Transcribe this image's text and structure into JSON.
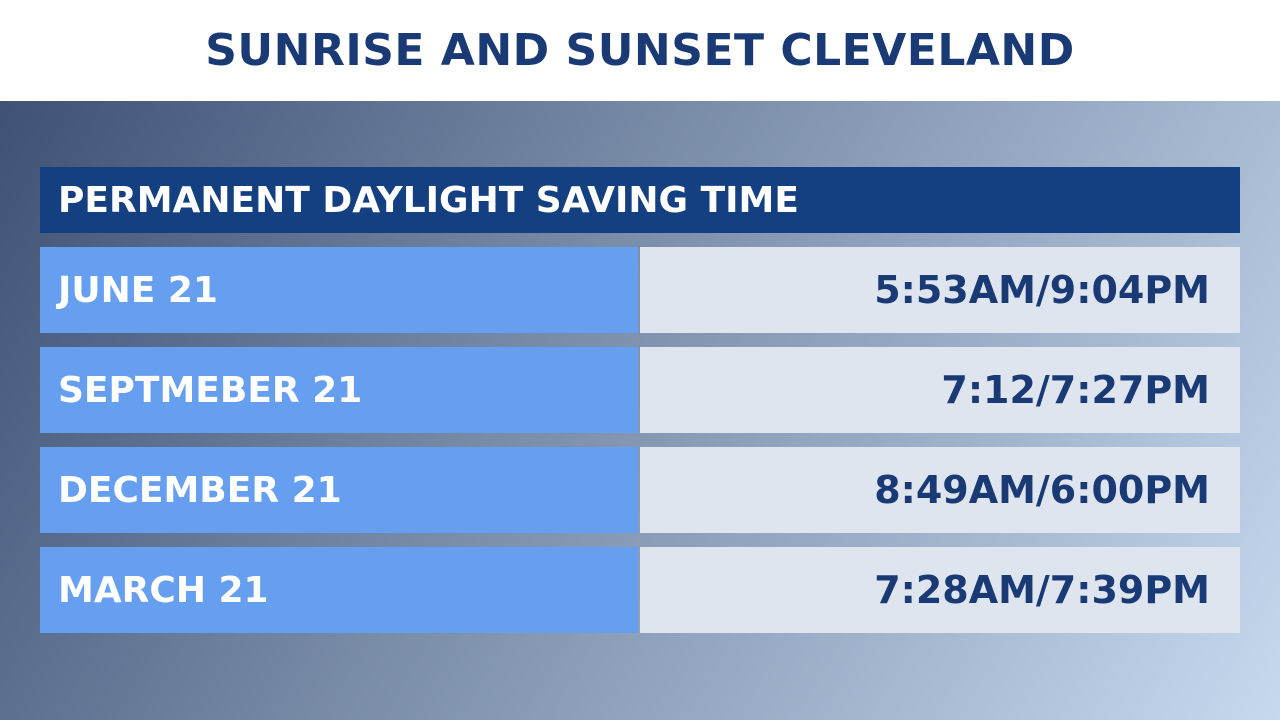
{
  "header": {
    "title": "SUNRISE AND SUNSET CLEVELAND"
  },
  "table": {
    "title": "PERMANENT DAYLIGHT SAVING TIME",
    "rows": [
      [
        "JUNE 21",
        "5:53AM/9:04PM"
      ],
      [
        "SEPTMEBER 21",
        "7:12/7:27PM"
      ],
      [
        "DECEMBER 21",
        "8:49AM/6:00PM"
      ],
      [
        "MARCH 21",
        "7:28AM/7:39PM"
      ]
    ]
  }
}
